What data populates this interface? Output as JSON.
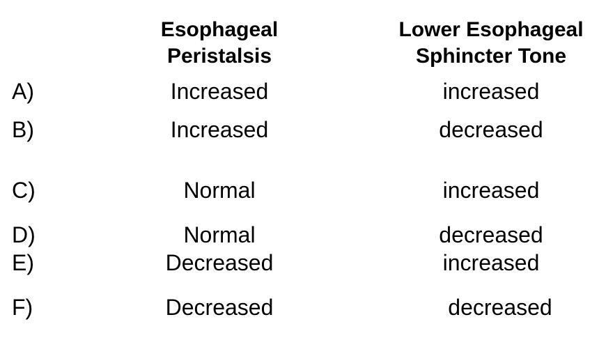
{
  "table": {
    "headers": [
      [
        "Esophageal",
        "Peristalsis"
      ],
      [
        "Lower Esophageal",
        "Sphincter Tone"
      ]
    ],
    "rows": [
      [
        "A)",
        "Increased",
        "increased"
      ],
      [
        "B)",
        "Increased",
        "decreased"
      ],
      [
        "C)",
        "Normal",
        "increased"
      ],
      [
        "D)",
        "Normal",
        "decreased"
      ],
      [
        "E)",
        "Decreased",
        "increased"
      ],
      [
        "F)",
        "Decreased",
        "decreased"
      ]
    ]
  }
}
